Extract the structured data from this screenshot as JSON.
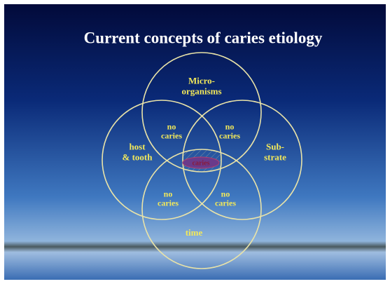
{
  "title": "Current concepts of caries etiology",
  "circles": [
    {
      "lines": [
        "Micro-",
        "organisms"
      ]
    },
    {
      "lines": [
        "host",
        "& tooth"
      ]
    },
    {
      "lines": [
        "Sub-",
        "strate"
      ]
    },
    {
      "lines": [
        "time"
      ]
    }
  ],
  "intersections": [
    {
      "lines": [
        "no",
        "caries"
      ]
    },
    {
      "lines": [
        "no",
        "caries"
      ]
    },
    {
      "lines": [
        "no",
        "caries"
      ]
    },
    {
      "lines": [
        "no",
        "caries"
      ]
    }
  ],
  "center": "caries"
}
